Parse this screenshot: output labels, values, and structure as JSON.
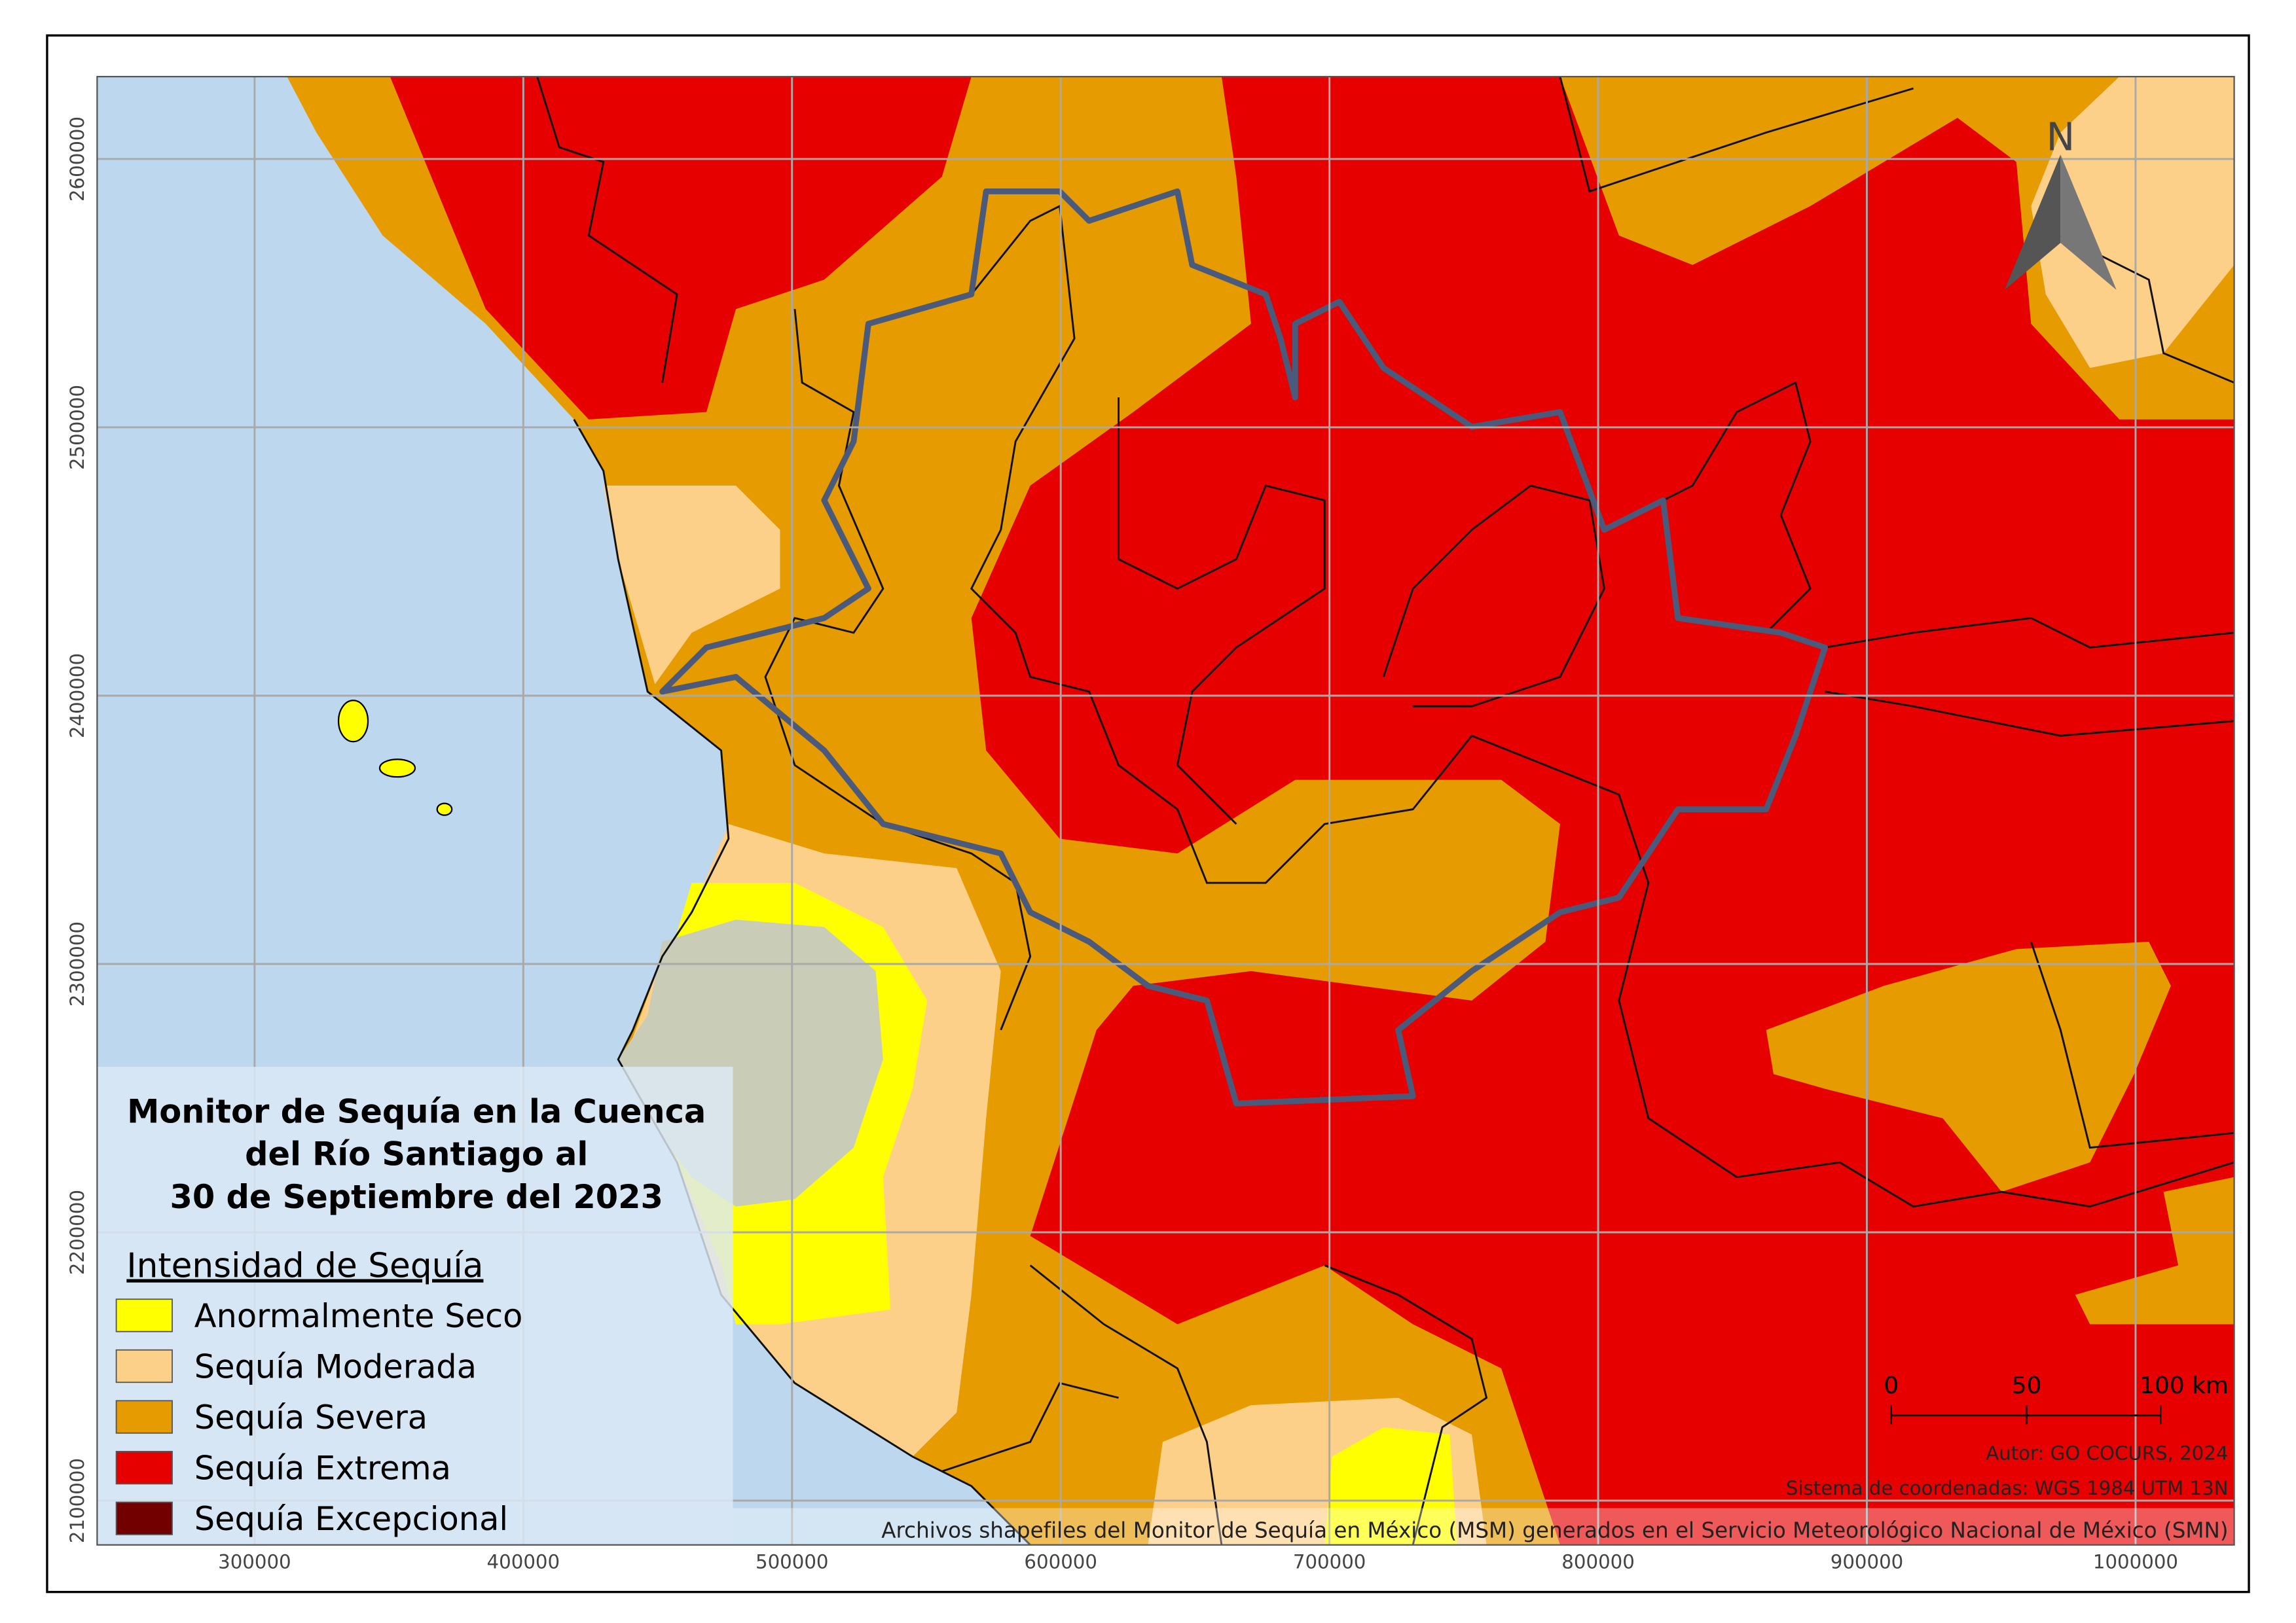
{
  "map": {
    "title": [
      "Monitor de Sequía en la Cuenca",
      "del Río Santiago al",
      "30 de Septiembre del 2023"
    ],
    "legend": {
      "title": "Intensidad de Sequía",
      "items": [
        {
          "label": "Anormalmente Seco",
          "color": "#ffff00"
        },
        {
          "label": "Sequía Moderada",
          "color": "#fdd08a"
        },
        {
          "label": "Sequía Severa",
          "color": "#e69b00"
        },
        {
          "label": "Sequía Extrema",
          "color": "#e60000"
        },
        {
          "label": "Sequía Excepcional",
          "color": "#730000"
        }
      ]
    },
    "north": "N",
    "scale_bar": [
      "0",
      "50",
      "100 km"
    ],
    "credits": [
      "Autor: GO COCURS, 2024",
      "Sistema de coordenadas: WGS 1984 UTM 13N",
      "Archivos shapefiles del Monitor de Sequía en México (MSM) generados en el Servicio Meteorológico Nacional de México (SMN)"
    ],
    "xlim": [
      241400,
      1036700
    ],
    "ylim": [
      2083500,
      2630700
    ],
    "xticks": [
      300000,
      400000,
      500000,
      600000,
      700000,
      800000,
      900000,
      1000000
    ],
    "yticks": [
      2100000,
      2200000,
      2300000,
      2400000,
      2500000,
      2600000
    ],
    "grid": true
  }
}
